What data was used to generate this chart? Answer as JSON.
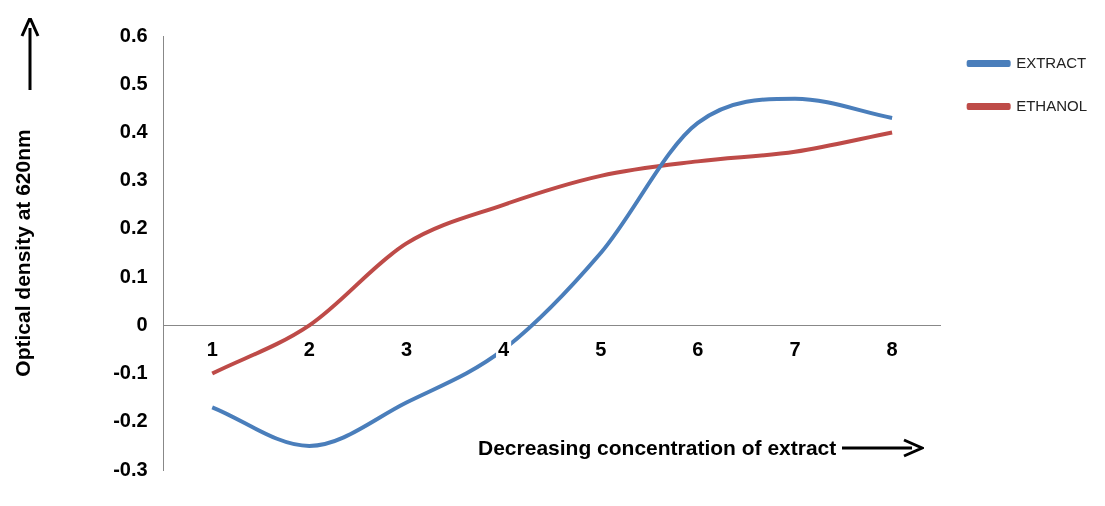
{
  "chart_data": {
    "type": "line",
    "xlabel": "Decreasing concentration of extract",
    "ylabel": "Optical density at 620nm",
    "categories": [
      "1",
      "2",
      "3",
      "4",
      "5",
      "6",
      "7",
      "8"
    ],
    "series": [
      {
        "name": "EXTRACT",
        "color": "#4a7ebb",
        "values": [
          -0.17,
          -0.25,
          -0.16,
          -0.05,
          0.15,
          0.42,
          0.47,
          0.43
        ]
      },
      {
        "name": "ETHANOL",
        "color": "#be4b48",
        "values": [
          -0.1,
          0.0,
          0.17,
          0.25,
          0.31,
          0.34,
          0.36,
          0.4
        ]
      }
    ],
    "ylim": [
      -0.3,
      0.6
    ],
    "yticks": [
      -0.3,
      -0.2,
      -0.1,
      0,
      0.1,
      0.2,
      0.3,
      0.4,
      0.5,
      0.6
    ],
    "grid": false,
    "legend": "top right",
    "marker": "none",
    "line_style": "solid"
  }
}
